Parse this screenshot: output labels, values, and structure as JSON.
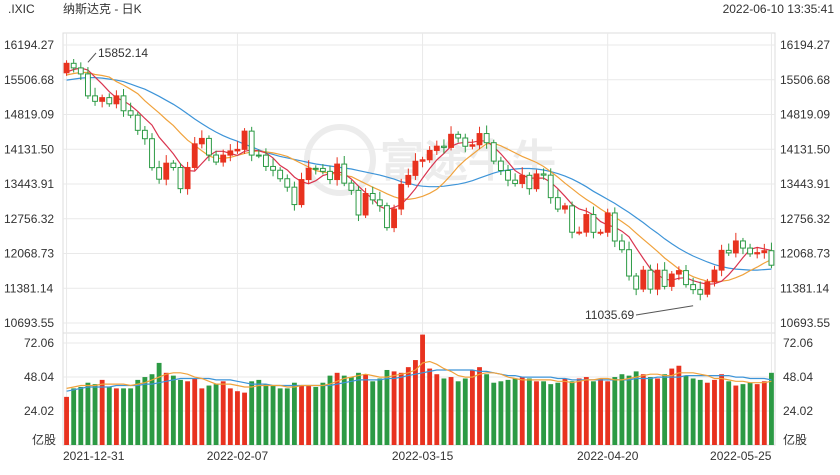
{
  "header": {
    "symbol": ".IXIC",
    "name": "纳斯达克 - 日K",
    "timestamp": "2022-06-10 13:35:41"
  },
  "watermark": "富途牛牛",
  "colors": {
    "up": "#e8321f",
    "down": "#2c9a44",
    "ma5": "#d9344f",
    "ma10": "#f0a23c",
    "ma20": "#3d94d8",
    "grid": "#e9e9e9",
    "axis_text": "#333333"
  },
  "chart_data": [
    {
      "type": "candlestick",
      "price_axis": {
        "ticks": [
          "16194.27",
          "15506.68",
          "14819.09",
          "14131.50",
          "13443.91",
          "12756.32",
          "12068.73",
          "11381.14",
          "10693.55"
        ],
        "ylim": [
          10693.55,
          16194.27
        ]
      },
      "date_labels": [
        "2021-12-31",
        "2022-02-07",
        "2022-03-15",
        "2022-04-20",
        "2022-05-25"
      ],
      "annotations": {
        "high": "15852.14",
        "low": "11035.69"
      },
      "candles": [
        [
          15644,
          15832
        ],
        [
          15832,
          15741
        ],
        [
          15741,
          15622
        ],
        [
          15622,
          15188
        ],
        [
          15188,
          15080
        ],
        [
          15080,
          15153
        ],
        [
          15153,
          15031
        ],
        [
          15031,
          15188
        ],
        [
          15188,
          14893
        ],
        [
          14893,
          14806
        ],
        [
          14806,
          14506
        ],
        [
          14506,
          14340
        ],
        [
          14340,
          13768
        ],
        [
          13768,
          13539
        ],
        [
          13539,
          13856
        ],
        [
          13856,
          13770
        ],
        [
          13770,
          13352
        ],
        [
          13352,
          13771
        ],
        [
          13771,
          14239
        ],
        [
          14239,
          14346
        ],
        [
          14346,
          14017
        ],
        [
          14017,
          13878
        ],
        [
          13878,
          14015
        ],
        [
          14015,
          14099
        ],
        [
          14099,
          14129
        ],
        [
          14129,
          14490
        ],
        [
          14490,
          14016
        ],
        [
          14016,
          14015
        ],
        [
          14015,
          13791
        ],
        [
          13791,
          13716
        ],
        [
          13716,
          13548
        ],
        [
          13548,
          13381
        ],
        [
          13381,
          13037
        ],
        [
          13037,
          13532
        ],
        [
          13532,
          13754
        ],
        [
          13754,
          13752
        ],
        [
          13752,
          13694
        ],
        [
          13694,
          13532
        ],
        [
          13532,
          13838
        ],
        [
          13838,
          13461
        ],
        [
          13461,
          13318
        ],
        [
          13318,
          12831
        ],
        [
          12831,
          13256
        ],
        [
          13256,
          13130
        ],
        [
          13130,
          13015
        ],
        [
          13015,
          12581
        ],
        [
          12581,
          12949
        ],
        [
          12949,
          13436
        ],
        [
          13436,
          13614
        ],
        [
          13614,
          13894
        ],
        [
          13894,
          13923
        ],
        [
          13923,
          14108
        ],
        [
          14108,
          14192
        ],
        [
          14192,
          14168
        ],
        [
          14168,
          14427
        ],
        [
          14427,
          14354
        ],
        [
          14354,
          14191
        ],
        [
          14191,
          14220
        ],
        [
          14220,
          14442
        ],
        [
          14442,
          14261
        ],
        [
          14261,
          13897
        ],
        [
          13897,
          13711
        ],
        [
          13711,
          13520
        ],
        [
          13520,
          13453
        ],
        [
          13453,
          13616
        ],
        [
          13616,
          13351
        ],
        [
          13351,
          13643
        ],
        [
          13643,
          13619
        ],
        [
          13619,
          13174
        ],
        [
          13174,
          12948
        ],
        [
          12948,
          13011
        ],
        [
          13011,
          12490
        ],
        [
          12490,
          12491
        ],
        [
          12491,
          12839
        ],
        [
          12839,
          12488
        ],
        [
          12488,
          12489
        ],
        [
          12489,
          12871
        ],
        [
          12871,
          12316
        ],
        [
          12316,
          12144
        ],
        [
          12144,
          11623
        ],
        [
          11623,
          11365
        ],
        [
          11365,
          11738
        ],
        [
          11738,
          11364
        ],
        [
          11364,
          11738
        ],
        [
          11738,
          11418
        ],
        [
          11418,
          11662
        ],
        [
          11662,
          11730
        ],
        [
          11730,
          11453
        ],
        [
          11453,
          11354
        ],
        [
          11354,
          11263
        ],
        [
          11263,
          11506
        ],
        [
          11506,
          11740
        ],
        [
          11740,
          12131
        ],
        [
          12131,
          12081
        ],
        [
          12081,
          12317
        ],
        [
          12317,
          12176
        ],
        [
          12176,
          12062
        ],
        [
          12062,
          12086
        ],
        [
          12086,
          12124
        ],
        [
          12124,
          11837
        ]
      ],
      "moving_averages": {
        "ma5": [
          15660,
          15710,
          15740,
          15700,
          15560,
          15420,
          15270,
          15150,
          15090,
          15000,
          14880,
          14740,
          14610,
          14370,
          14210,
          14040,
          13840,
          13710,
          13700,
          13850,
          14000,
          14090,
          14090,
          14050,
          14010,
          14090,
          14120,
          14100,
          14060,
          13960,
          13810,
          13720,
          13580,
          13490,
          13450,
          13510,
          13610,
          13650,
          13690,
          13650,
          13540,
          13400,
          13270,
          13150,
          13000,
          12940,
          12980,
          13040,
          13180,
          13350,
          13560,
          13750,
          13920,
          14050,
          14190,
          14250,
          14270,
          14270,
          14300,
          14290,
          14180,
          14040,
          13880,
          13710,
          13620,
          13560,
          13560,
          13560,
          13480,
          13350,
          13200,
          13040,
          12950,
          12910,
          12830,
          12700,
          12630,
          12590,
          12510,
          12400,
          12180,
          11970,
          11770,
          11650,
          11560,
          11540,
          11580,
          11590,
          11530,
          11490,
          11460,
          11470,
          11520,
          11650,
          11810,
          11990,
          12150,
          12190,
          12160,
          12130
        ],
        "ma10": [
          15600,
          15630,
          15650,
          15650,
          15610,
          15590,
          15560,
          15470,
          15400,
          15320,
          15230,
          15090,
          14970,
          14850,
          14720,
          14600,
          14450,
          14310,
          14210,
          14100,
          14000,
          13950,
          13950,
          13970,
          14010,
          14050,
          14080,
          14100,
          14080,
          14060,
          14030,
          13990,
          13920,
          13850,
          13780,
          13710,
          13680,
          13660,
          13640,
          13610,
          13590,
          13520,
          13450,
          13380,
          13320,
          13250,
          13190,
          13150,
          13140,
          13160,
          13200,
          13260,
          13340,
          13470,
          13620,
          13790,
          13920,
          14030,
          14140,
          14240,
          14250,
          14200,
          14130,
          14060,
          13990,
          13930,
          13870,
          13790,
          13690,
          13580,
          13460,
          13350,
          13240,
          13140,
          13050,
          12950,
          12860,
          12790,
          12700,
          12600,
          12470,
          12350,
          12230,
          12110,
          11980,
          11870,
          11760,
          11680,
          11610,
          11560,
          11520,
          11510,
          11520,
          11540,
          11590,
          11650,
          11730,
          11800,
          11880,
          11950
        ],
        "ma20": [
          15500,
          15520,
          15540,
          15550,
          15550,
          15540,
          15520,
          15500,
          15470,
          15420,
          15370,
          15320,
          15250,
          15180,
          15100,
          15020,
          14930,
          14830,
          14730,
          14640,
          14550,
          14470,
          14400,
          14340,
          14290,
          14230,
          14180,
          14120,
          14070,
          14030,
          13990,
          13960,
          13930,
          13900,
          13870,
          13840,
          13820,
          13800,
          13780,
          13760,
          13740,
          13710,
          13680,
          13650,
          13620,
          13580,
          13540,
          13490,
          13460,
          13420,
          13400,
          13390,
          13390,
          13400,
          13420,
          13440,
          13470,
          13510,
          13560,
          13610,
          13660,
          13700,
          13720,
          13740,
          13750,
          13750,
          13740,
          13720,
          13690,
          13650,
          13600,
          13540,
          13470,
          13390,
          13300,
          13220,
          13140,
          13060,
          12970,
          12880,
          12780,
          12680,
          12570,
          12470,
          12360,
          12260,
          12170,
          12090,
          12020,
          11960,
          11900,
          11850,
          11810,
          11780,
          11760,
          11750,
          11740,
          11740,
          11750,
          11760
        ]
      }
    },
    {
      "type": "bar",
      "name": "volume",
      "unit": "亿股",
      "y_axis": {
        "ticks": [
          "72.06",
          "48.04",
          "24.02"
        ],
        "ylim": [
          0,
          72.06
        ]
      },
      "values": [
        34,
        40,
        41,
        44,
        43,
        46,
        41,
        40,
        40,
        40,
        46,
        48,
        50,
        58,
        51,
        49,
        46,
        45,
        47,
        40,
        42,
        43,
        45,
        40,
        38,
        37,
        45,
        46,
        43,
        42,
        40,
        40,
        44,
        42,
        42,
        41,
        44,
        49,
        51,
        49,
        48,
        51,
        50,
        45,
        47,
        53,
        52,
        51,
        55,
        60,
        78,
        54,
        50,
        47,
        48,
        45,
        47,
        53,
        55,
        50,
        44,
        45,
        46,
        47,
        48,
        47,
        45,
        45,
        43,
        44,
        47,
        45,
        47,
        48,
        45,
        47,
        45,
        48,
        50,
        49,
        52,
        50,
        48,
        47,
        50,
        54,
        56,
        49,
        47,
        46,
        44,
        46,
        50,
        45,
        42,
        43,
        44,
        43,
        45,
        51
      ],
      "ma5": [
        40,
        41,
        42,
        42,
        42,
        43,
        43,
        43,
        43,
        42,
        43,
        44,
        46,
        48,
        50,
        51,
        51,
        50,
        48,
        47,
        45,
        43,
        43,
        43,
        42,
        41,
        41,
        42,
        42,
        42,
        42,
        41,
        41,
        42,
        42,
        42,
        42,
        43,
        45,
        47,
        48,
        49,
        50,
        49,
        48,
        48,
        49,
        50,
        51,
        53,
        58,
        59,
        57,
        54,
        52,
        49,
        48,
        48,
        50,
        51,
        51,
        50,
        48,
        47,
        46,
        46,
        46,
        46,
        46,
        45,
        45,
        44,
        45,
        46,
        46,
        47,
        47,
        46,
        46,
        47,
        48,
        49,
        50,
        50,
        49,
        49,
        51,
        51,
        51,
        50,
        49,
        47,
        47,
        46,
        45,
        45,
        44,
        44,
        44,
        45
      ],
      "ma10": [
        38,
        39,
        40,
        41,
        41,
        41,
        41,
        42,
        42,
        42,
        42,
        43,
        43,
        44,
        45,
        46,
        47,
        47,
        47,
        47,
        47,
        46,
        46,
        46,
        45,
        44,
        43,
        43,
        43,
        42,
        42,
        42,
        42,
        42,
        42,
        42,
        42,
        42,
        43,
        44,
        45,
        46,
        46,
        46,
        46,
        47,
        47,
        48,
        49,
        50,
        51,
        52,
        53,
        53,
        53,
        53,
        53,
        53,
        52,
        52,
        51,
        50,
        49,
        49,
        48,
        48,
        48,
        48,
        48,
        47,
        47,
        46,
        46,
        46,
        46,
        46,
        46,
        46,
        46,
        46,
        47,
        47,
        47,
        48,
        48,
        48,
        48,
        49,
        49,
        49,
        49,
        49,
        49,
        49,
        48,
        48,
        47,
        47,
        47,
        46
      ]
    }
  ]
}
